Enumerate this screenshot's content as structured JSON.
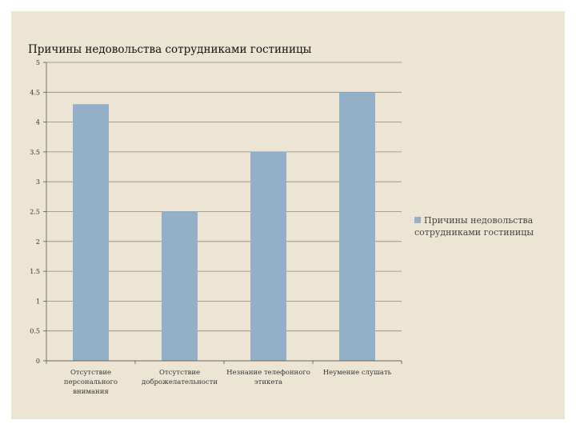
{
  "chart_data": {
    "type": "bar",
    "title": "Причины недовольства сотрудниками гостиницы",
    "categories": [
      "Отсутствие персонального внимания",
      "Отсутствие доброжелательности",
      "Незнание телефонного этикета",
      "Неумение слушать"
    ],
    "series": [
      {
        "name": "Причины недовольства сотрудниками гостиницы",
        "values": [
          4.3,
          2.5,
          3.5,
          4.5
        ]
      }
    ],
    "ylim": [
      0,
      5
    ],
    "yticks": [
      "0",
      "0.5",
      "1",
      "1.5",
      "2",
      "2.5",
      "3",
      "3.5",
      "4",
      "4.5",
      "5"
    ],
    "grid": true,
    "legend_position": "right",
    "colors": {
      "bar": "#94b0c8",
      "grid": "#8a8a8a",
      "background": "#ece5d3"
    }
  }
}
